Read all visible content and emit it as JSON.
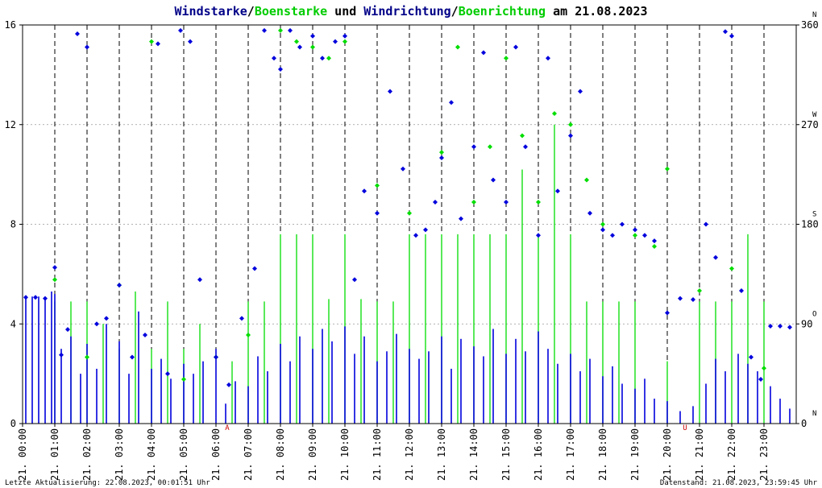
{
  "title": {
    "part1": "Windstarke",
    "sep1": "/",
    "part2": "Boenstarke",
    "mid": " und ",
    "part3": "Windrichtung",
    "sep2": "/",
    "part4": "Boenrichtung",
    "suffix": " am 21.08.2023"
  },
  "footer": {
    "left": "Letzte Aktualisierung: 22.08.2023, 00:01:51 Uhr",
    "right": "Datenstand: 21.08.2023, 23:59:45 Uhr"
  },
  "colors": {
    "wind": "#0000dd",
    "gust": "#00dd00",
    "title_dark": "#000088",
    "grid": "#000000",
    "event": "#cc0000"
  },
  "chart_data": {
    "type": "scatter",
    "x_unit": "hour",
    "xlim": [
      0,
      24
    ],
    "ylim_left": [
      0,
      16
    ],
    "ylim_right": [
      0,
      360
    ],
    "y_ticks_left": [
      "0",
      "4",
      "8",
      "12",
      "16"
    ],
    "y_ticks_right": [
      {
        "value": "0",
        "dir": "N"
      },
      {
        "value": "90",
        "dir": "O"
      },
      {
        "value": "180",
        "dir": "S"
      },
      {
        "value": "270",
        "dir": "W"
      },
      {
        "value": "360",
        "dir": "N"
      }
    ],
    "x_tick_labels": [
      "21. 00:00",
      "21. 01:00",
      "21. 02:00",
      "21. 03:00",
      "21. 04:00",
      "21. 05:00",
      "21. 06:00",
      "21. 07:00",
      "21. 08:00",
      "21. 09:00",
      "21. 10:00",
      "21. 11:00",
      "21. 12:00",
      "21. 13:00",
      "21. 14:00",
      "21. 15:00",
      "21. 16:00",
      "21. 17:00",
      "21. 18:00",
      "21. 19:00",
      "21. 20:00",
      "21. 21:00",
      "21. 22:00",
      "21. 23:00"
    ],
    "events": [
      {
        "label": "A",
        "hour": 6.35
      },
      {
        "label": "U",
        "hour": 20.55
      }
    ],
    "grid": "dashed vertical per hour, dotted horizontal",
    "series": [
      {
        "name": "Windstarke",
        "axis": "left",
        "color": "#0000dd",
        "points": [
          [
            0.1,
            5.0
          ],
          [
            0.3,
            5.1
          ],
          [
            0.5,
            5.1
          ],
          [
            0.7,
            5.0
          ],
          [
            0.9,
            5.3
          ],
          [
            1.0,
            5.2
          ],
          [
            1.2,
            3.0
          ],
          [
            1.5,
            3.5
          ],
          [
            1.8,
            2.0
          ],
          [
            2.0,
            3.2
          ],
          [
            2.3,
            2.2
          ],
          [
            2.6,
            4.0
          ],
          [
            3.0,
            3.3
          ],
          [
            3.3,
            2.0
          ],
          [
            3.6,
            4.5
          ],
          [
            4.0,
            2.2
          ],
          [
            4.3,
            2.6
          ],
          [
            4.6,
            1.8
          ],
          [
            5.0,
            2.4
          ],
          [
            5.3,
            2.0
          ],
          [
            5.6,
            2.5
          ],
          [
            6.0,
            3.0
          ],
          [
            6.3,
            0.8
          ],
          [
            6.6,
            1.7
          ],
          [
            7.0,
            1.5
          ],
          [
            7.3,
            2.7
          ],
          [
            7.6,
            2.1
          ],
          [
            8.0,
            3.2
          ],
          [
            8.3,
            2.5
          ],
          [
            8.6,
            3.5
          ],
          [
            9.0,
            3.0
          ],
          [
            9.3,
            3.8
          ],
          [
            9.6,
            3.3
          ],
          [
            10.0,
            3.9
          ],
          [
            10.3,
            2.8
          ],
          [
            10.6,
            3.5
          ],
          [
            11.0,
            2.5
          ],
          [
            11.3,
            2.9
          ],
          [
            11.6,
            3.6
          ],
          [
            12.0,
            3.0
          ],
          [
            12.3,
            2.6
          ],
          [
            12.6,
            2.9
          ],
          [
            13.0,
            3.5
          ],
          [
            13.3,
            2.2
          ],
          [
            13.6,
            3.4
          ],
          [
            14.0,
            3.1
          ],
          [
            14.3,
            2.7
          ],
          [
            14.6,
            3.8
          ],
          [
            15.0,
            2.8
          ],
          [
            15.3,
            3.4
          ],
          [
            15.6,
            2.9
          ],
          [
            16.0,
            3.7
          ],
          [
            16.3,
            3.0
          ],
          [
            16.6,
            2.4
          ],
          [
            17.0,
            2.8
          ],
          [
            17.3,
            2.1
          ],
          [
            17.6,
            2.6
          ],
          [
            18.0,
            1.9
          ],
          [
            18.3,
            2.3
          ],
          [
            18.6,
            1.6
          ],
          [
            19.0,
            1.4
          ],
          [
            19.3,
            1.8
          ],
          [
            19.6,
            1.0
          ],
          [
            20.0,
            0.9
          ],
          [
            20.4,
            0.5
          ],
          [
            20.8,
            0.7
          ],
          [
            21.2,
            1.6
          ],
          [
            21.5,
            2.6
          ],
          [
            21.8,
            2.1
          ],
          [
            22.2,
            2.8
          ],
          [
            22.5,
            2.4
          ],
          [
            22.8,
            2.1
          ],
          [
            23.2,
            1.5
          ],
          [
            23.5,
            1.0
          ],
          [
            23.8,
            0.6
          ]
        ]
      },
      {
        "name": "Boenstarke",
        "axis": "left",
        "color": "#00dd00",
        "points": [
          [
            1.0,
            4.9
          ],
          [
            1.5,
            4.9
          ],
          [
            2.0,
            4.9
          ],
          [
            2.5,
            4.0
          ],
          [
            3.0,
            3.0
          ],
          [
            3.5,
            5.3
          ],
          [
            4.0,
            3.0
          ],
          [
            4.5,
            4.9
          ],
          [
            5.0,
            3.0
          ],
          [
            5.5,
            4.0
          ],
          [
            6.5,
            2.5
          ],
          [
            7.0,
            4.9
          ],
          [
            7.5,
            4.9
          ],
          [
            8.0,
            7.6
          ],
          [
            8.5,
            7.6
          ],
          [
            9.0,
            7.6
          ],
          [
            9.5,
            5.0
          ],
          [
            10.0,
            7.6
          ],
          [
            10.5,
            5.0
          ],
          [
            11.0,
            4.9
          ],
          [
            11.5,
            4.9
          ],
          [
            12.0,
            7.6
          ],
          [
            12.5,
            7.6
          ],
          [
            13.0,
            7.6
          ],
          [
            13.5,
            7.6
          ],
          [
            14.0,
            7.6
          ],
          [
            14.5,
            7.6
          ],
          [
            15.0,
            7.6
          ],
          [
            15.5,
            10.2
          ],
          [
            16.0,
            7.6
          ],
          [
            16.5,
            12.0
          ],
          [
            17.0,
            7.6
          ],
          [
            17.5,
            4.9
          ],
          [
            18.0,
            4.9
          ],
          [
            18.5,
            4.9
          ],
          [
            19.0,
            4.9
          ],
          [
            20.0,
            2.5
          ],
          [
            21.0,
            4.9
          ],
          [
            21.5,
            4.9
          ],
          [
            22.0,
            4.9
          ],
          [
            22.5,
            7.6
          ],
          [
            23.0,
            4.9
          ]
        ]
      },
      {
        "name": "Windrichtung",
        "axis": "right",
        "color": "#0000dd",
        "points": [
          [
            0.1,
            114
          ],
          [
            0.4,
            114
          ],
          [
            0.7,
            113
          ],
          [
            1.0,
            141
          ],
          [
            1.2,
            62
          ],
          [
            1.4,
            85
          ],
          [
            1.7,
            352
          ],
          [
            2.0,
            340
          ],
          [
            2.3,
            90
          ],
          [
            2.6,
            95
          ],
          [
            3.0,
            125
          ],
          [
            3.4,
            60
          ],
          [
            3.8,
            80
          ],
          [
            4.2,
            343
          ],
          [
            4.5,
            45
          ],
          [
            4.9,
            355
          ],
          [
            5.2,
            345
          ],
          [
            5.5,
            130
          ],
          [
            6.0,
            60
          ],
          [
            6.4,
            35
          ],
          [
            6.8,
            95
          ],
          [
            7.2,
            140
          ],
          [
            7.5,
            355
          ],
          [
            7.8,
            330
          ],
          [
            8.0,
            320
          ],
          [
            8.3,
            355
          ],
          [
            8.6,
            340
          ],
          [
            9.0,
            350
          ],
          [
            9.3,
            330
          ],
          [
            9.7,
            345
          ],
          [
            10.0,
            350
          ],
          [
            10.3,
            130
          ],
          [
            10.6,
            210
          ],
          [
            11.0,
            190
          ],
          [
            11.4,
            300
          ],
          [
            11.8,
            230
          ],
          [
            12.2,
            170
          ],
          [
            12.5,
            175
          ],
          [
            12.8,
            200
          ],
          [
            13.0,
            240
          ],
          [
            13.3,
            290
          ],
          [
            13.6,
            185
          ],
          [
            14.0,
            250
          ],
          [
            14.3,
            335
          ],
          [
            14.6,
            220
          ],
          [
            15.0,
            200
          ],
          [
            15.3,
            340
          ],
          [
            15.6,
            250
          ],
          [
            16.0,
            170
          ],
          [
            16.3,
            330
          ],
          [
            16.6,
            210
          ],
          [
            17.0,
            260
          ],
          [
            17.3,
            300
          ],
          [
            17.6,
            190
          ],
          [
            18.0,
            175
          ],
          [
            18.3,
            170
          ],
          [
            18.6,
            180
          ],
          [
            19.0,
            175
          ],
          [
            19.3,
            170
          ],
          [
            19.6,
            165
          ],
          [
            20.0,
            100
          ],
          [
            20.4,
            113
          ],
          [
            20.8,
            112
          ],
          [
            21.2,
            180
          ],
          [
            21.5,
            150
          ],
          [
            21.8,
            354
          ],
          [
            22.0,
            350
          ],
          [
            22.3,
            120
          ],
          [
            22.6,
            60
          ],
          [
            22.9,
            40
          ],
          [
            23.2,
            88
          ],
          [
            23.5,
            88
          ],
          [
            23.8,
            87
          ]
        ]
      },
      {
        "name": "Boenrichtung",
        "axis": "right",
        "color": "#00dd00",
        "points": [
          [
            1.0,
            130
          ],
          [
            2.0,
            60
          ],
          [
            3.0,
            125
          ],
          [
            4.0,
            345
          ],
          [
            5.0,
            40
          ],
          [
            6.0,
            60
          ],
          [
            7.0,
            80
          ],
          [
            8.0,
            355
          ],
          [
            8.5,
            345
          ],
          [
            9.0,
            340
          ],
          [
            9.5,
            330
          ],
          [
            10.0,
            345
          ],
          [
            11.0,
            215
          ],
          [
            12.0,
            190
          ],
          [
            13.0,
            245
          ],
          [
            13.5,
            340
          ],
          [
            14.0,
            200
          ],
          [
            14.5,
            250
          ],
          [
            15.0,
            330
          ],
          [
            15.5,
            260
          ],
          [
            16.0,
            200
          ],
          [
            16.5,
            280
          ],
          [
            17.0,
            270
          ],
          [
            17.5,
            220
          ],
          [
            18.0,
            180
          ],
          [
            19.0,
            170
          ],
          [
            19.6,
            160
          ],
          [
            20.0,
            230
          ],
          [
            21.0,
            120
          ],
          [
            22.0,
            140
          ],
          [
            23.0,
            50
          ]
        ]
      }
    ]
  }
}
